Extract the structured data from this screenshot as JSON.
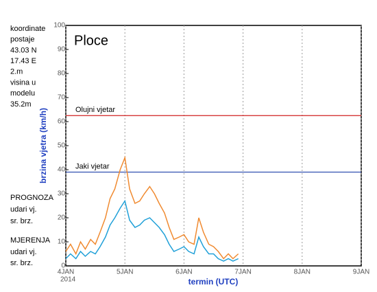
{
  "chart_data": {
    "type": "line",
    "title": "Ploce",
    "station_info": [
      "koordinate",
      "postaje",
      "43.03 N",
      "17.43 E",
      "2.m",
      "visina u",
      "modelu",
      "35.2m"
    ],
    "y_label": "brzina vjetra (km/h)",
    "x_label": "termin (UTC)",
    "x_year_label": "2014",
    "x": [
      4.0,
      4.08,
      4.17,
      4.25,
      4.33,
      4.42,
      4.5,
      4.58,
      4.67,
      4.75,
      4.83,
      4.92,
      5.0,
      5.08,
      5.17,
      5.25,
      5.33,
      5.42,
      5.5,
      5.58,
      5.67,
      5.75,
      5.83,
      5.92,
      6.0,
      6.08,
      6.17,
      6.25,
      6.33,
      6.42,
      6.5,
      6.58,
      6.67,
      6.75,
      6.83,
      6.92
    ],
    "series": [
      {
        "name": "udari vj.",
        "color": "#f08a30",
        "values": [
          6,
          9,
          5,
          10,
          7,
          11,
          9,
          14,
          20,
          28,
          32,
          40,
          45,
          32,
          26,
          27,
          30,
          33,
          30,
          26,
          22,
          16,
          11,
          12,
          13,
          10,
          9,
          20,
          14,
          9,
          8,
          6,
          3,
          5,
          3,
          5
        ]
      },
      {
        "name": "sr. brz.",
        "color": "#20a0d8",
        "values": [
          3,
          5,
          3,
          6,
          4,
          6,
          5,
          8,
          12,
          17,
          20,
          24,
          27,
          19,
          16,
          17,
          19,
          20,
          18,
          16,
          13,
          9,
          6,
          7,
          8,
          6,
          5,
          12,
          8,
          5,
          5,
          3,
          2,
          3,
          2,
          3
        ]
      }
    ],
    "measured_legend_title": "MJERENJA",
    "forecast_legend": {
      "title": "PROGNOZA",
      "items": [
        {
          "name": "udari vj.",
          "color": "#e04020"
        },
        {
          "name": "sr. brz.",
          "color": "#2040c0"
        }
      ]
    },
    "thresholds": [
      {
        "label": "Olujni vjetar",
        "value": 62.5,
        "color": "#d02020"
      },
      {
        "label": "Jaki vjetar",
        "value": 39,
        "color": "#3050b0"
      }
    ],
    "xlim": [
      4,
      9
    ],
    "xticks": [
      {
        "value": 4,
        "label": "4JAN"
      },
      {
        "value": 5,
        "label": "5JAN"
      },
      {
        "value": 6,
        "label": "6JAN"
      },
      {
        "value": 7,
        "label": "7JAN"
      },
      {
        "value": 8,
        "label": "8JAN"
      },
      {
        "value": 9,
        "label": "9JAN"
      }
    ],
    "ylim": [
      0,
      100
    ],
    "yticks": [
      0,
      10,
      20,
      30,
      40,
      50,
      60,
      70,
      80,
      90,
      100
    ],
    "x_grid": true
  }
}
